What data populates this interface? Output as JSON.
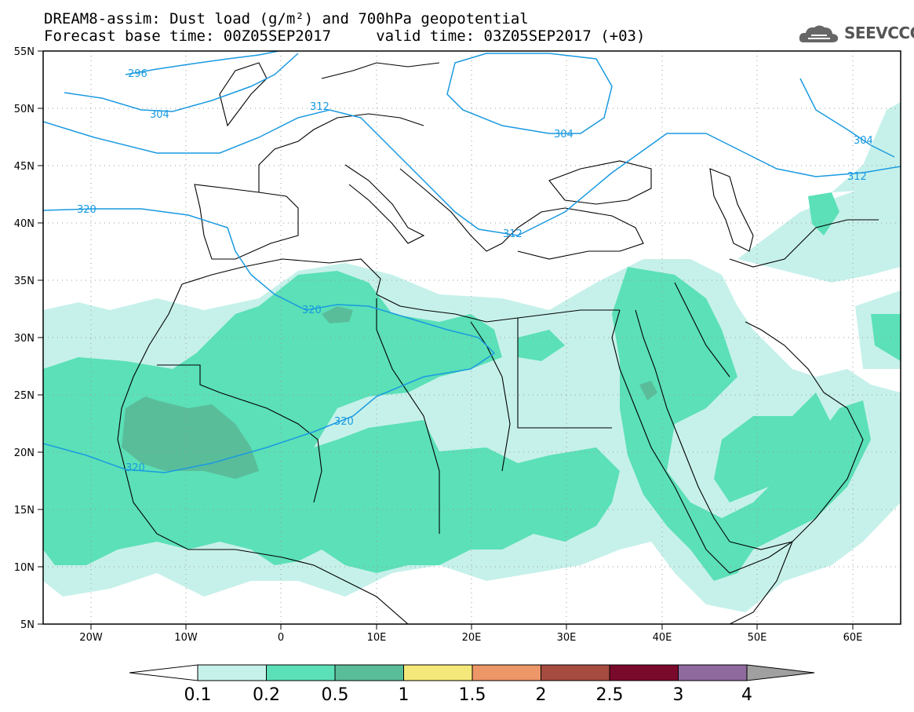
{
  "title": {
    "line1": "DREAM8-assim: Dust load (g/m²) and 700hPa geopotential",
    "line2": "Forecast base time: 00Z05SEP2017     valid time: 03Z05SEP2017 (+03)"
  },
  "logo": {
    "text": "SEEVCCC",
    "icon": "cloud-icon"
  },
  "map": {
    "lon_range": [
      -25,
      65
    ],
    "lat_range": [
      5,
      55
    ],
    "lat_labels": [
      "55N",
      "50N",
      "45N",
      "40N",
      "35N",
      "30N",
      "25N",
      "20N",
      "15N",
      "10N",
      "5N"
    ],
    "lon_labels": [
      "20W",
      "10W",
      "0",
      "10E",
      "20E",
      "30E",
      "40E",
      "50E",
      "60E"
    ],
    "contour_color": "#1a9ae0",
    "contour_labels": [
      "296",
      "304",
      "312",
      "320",
      "320",
      "320",
      "320",
      "304",
      "304",
      "312",
      "312"
    ],
    "gridlines": "dotted"
  },
  "colorbar": {
    "labels": [
      "0.1",
      "0.2",
      "0.5",
      "1",
      "1.5",
      "2",
      "2.5",
      "3",
      "4"
    ],
    "colors": [
      "#c6f1ea",
      "#5be0b7",
      "#5abd9a",
      "#f5e87a",
      "#ed9668",
      "#a64b40",
      "#7a0a2c",
      "#8e6a9e"
    ],
    "under_color": "#ffffff",
    "over_color": "#a0a0a0"
  }
}
